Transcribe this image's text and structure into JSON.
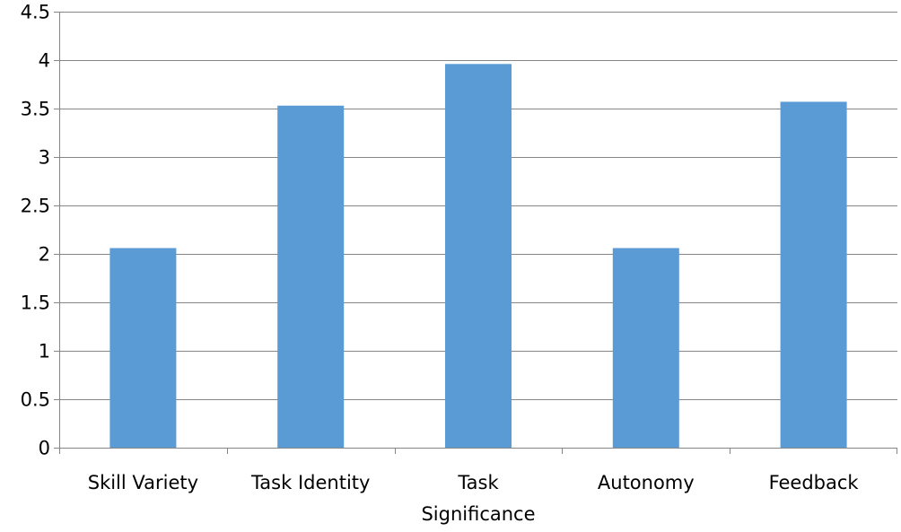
{
  "chart_data": {
    "type": "bar",
    "title": "",
    "xlabel": "",
    "ylabel": "",
    "categories": [
      "Skill Variety",
      "Task Identity",
      "Task Significance",
      "Autonomy",
      "Feedback"
    ],
    "category_label_lines": [
      [
        "Skill Variety"
      ],
      [
        "Task Identity"
      ],
      [
        "Task",
        "Significance"
      ],
      [
        "Autonomy"
      ],
      [
        "Feedback"
      ]
    ],
    "series": [
      {
        "values": [
          2.06,
          3.53,
          3.96,
          2.06,
          3.57
        ],
        "color": "#5b9bd5"
      }
    ],
    "ylim": [
      0,
      4.5
    ],
    "yticks": [
      0,
      0.5,
      1,
      1.5,
      2,
      2.5,
      3,
      3.5,
      4,
      4.5
    ],
    "ytick_labels": [
      "0",
      "0.5",
      "1",
      "1.5",
      "2",
      "2.5",
      "3",
      "3.5",
      "4",
      "4.5"
    ],
    "grid": true,
    "legend": "none",
    "colors": {
      "bar": "#5b9bd5",
      "grid": "#868686",
      "axis": "#868686",
      "text": "#000000"
    }
  }
}
